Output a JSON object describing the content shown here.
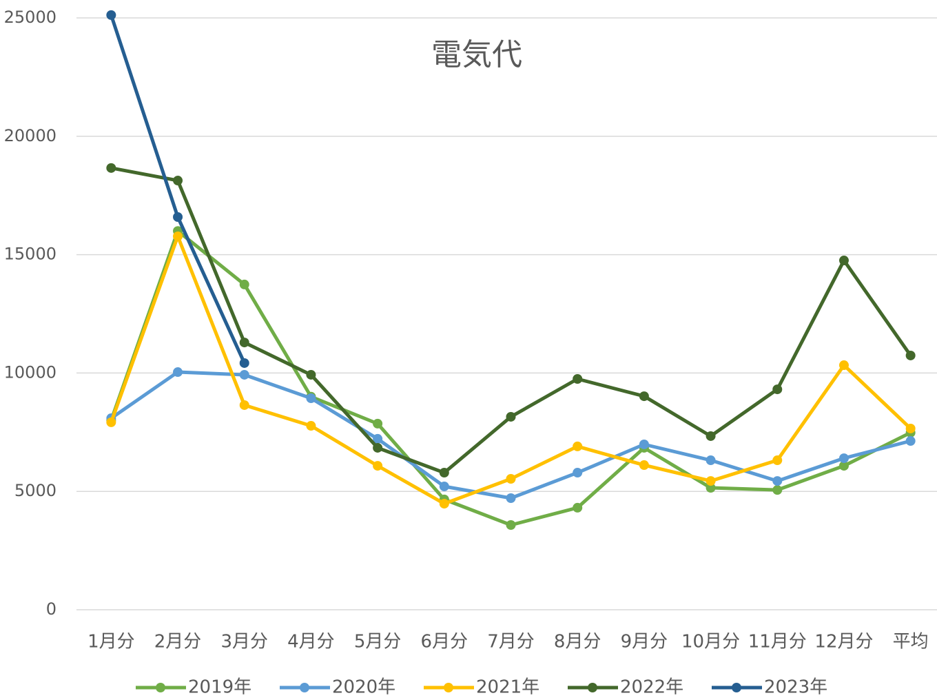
{
  "chart_data": {
    "type": "line",
    "title": "電気代",
    "categories": [
      "1月分",
      "2月分",
      "3月分",
      "4月分",
      "5月分",
      "6月分",
      "7月分",
      "8月分",
      "9月分",
      "10月分",
      "11月分",
      "12月分",
      "平均"
    ],
    "series": [
      {
        "name": "2019年",
        "color": "#70ad47",
        "values": [
          8000,
          16000,
          13740,
          9000,
          7860,
          4660,
          3580,
          4310,
          6840,
          5150,
          5060,
          6080,
          7480
        ]
      },
      {
        "name": "2020年",
        "color": "#5b9bd5",
        "values": [
          8090,
          10040,
          9925,
          8935,
          7220,
          5210,
          4715,
          5790,
          6985,
          6315,
          5440,
          6400,
          7130
        ]
      },
      {
        "name": "2021年",
        "color": "#ffc000",
        "values": [
          7920,
          15775,
          8645,
          7770,
          6080,
          4480,
          5530,
          6900,
          6110,
          5440,
          6315,
          10330,
          7655
        ]
      },
      {
        "name": "2022年",
        "color": "#43682b",
        "values": [
          18660,
          18130,
          11290,
          9925,
          6840,
          5790,
          8150,
          9750,
          9020,
          7335,
          9310,
          14755,
          10740
        ]
      },
      {
        "name": "2023年",
        "color": "#255e91",
        "values": [
          25120,
          16590,
          10420,
          null,
          null,
          null,
          null,
          null,
          null,
          null,
          null,
          null,
          null
        ]
      }
    ],
    "ylim": [
      0,
      25000
    ],
    "yticks": [
      0,
      5000,
      10000,
      15000,
      20000,
      25000
    ],
    "grid": true,
    "legend": "bottom"
  }
}
